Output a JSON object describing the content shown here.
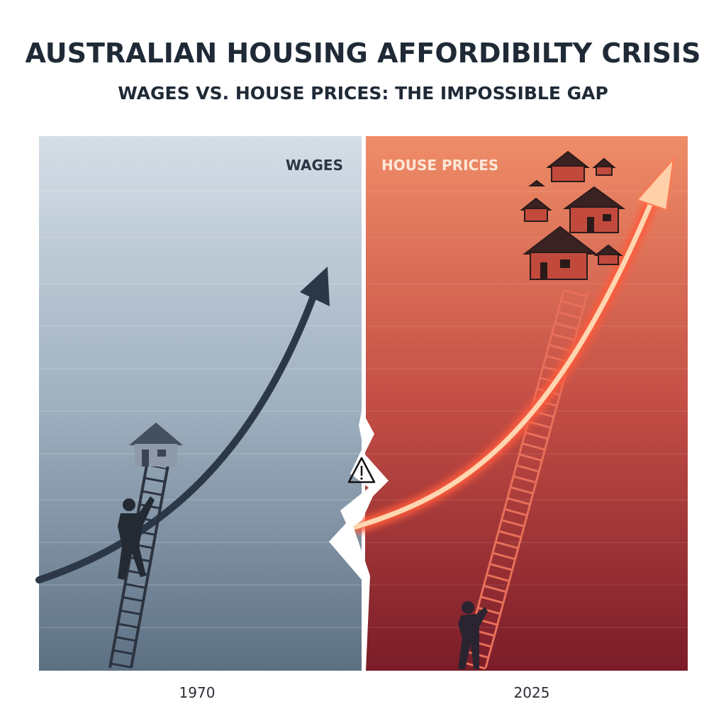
{
  "header": {
    "title": "AUSTRALIAN HOUSING AFFORDIBILTY CRISIS",
    "subtitle": "WAGES VS. HOUSE PRICES: THE IMPOSSIBLE GAP"
  },
  "panels": [
    {
      "label": "WAGES",
      "year": "1970"
    },
    {
      "label": "HOUSE PRICES",
      "year": "2025"
    }
  ]
}
